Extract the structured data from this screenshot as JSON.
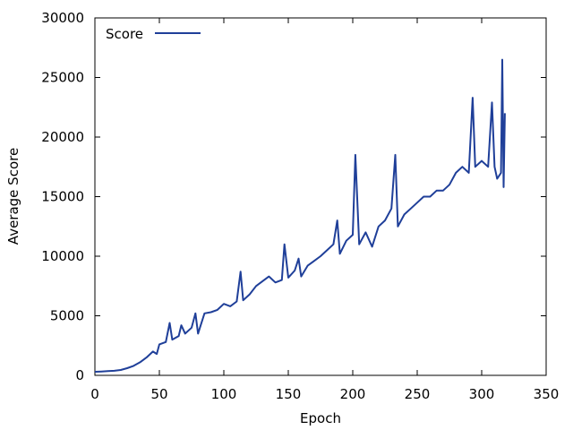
{
  "chart_data": {
    "type": "line",
    "title": "",
    "xlabel": "Epoch",
    "ylabel": "Average Score",
    "xlim": [
      0,
      350
    ],
    "ylim": [
      0,
      30000
    ],
    "xticks": [
      0,
      50,
      100,
      150,
      200,
      250,
      300,
      350
    ],
    "yticks": [
      0,
      5000,
      10000,
      15000,
      20000,
      25000,
      30000
    ],
    "grid": false,
    "legend_position": "top-left",
    "series": [
      {
        "name": "Score",
        "color": "#1f3f99",
        "x": [
          0,
          5,
          10,
          15,
          20,
          25,
          30,
          35,
          40,
          45,
          48,
          50,
          55,
          58,
          60,
          65,
          67,
          70,
          75,
          78,
          80,
          85,
          90,
          95,
          100,
          105,
          110,
          113,
          115,
          120,
          125,
          130,
          135,
          140,
          145,
          147,
          150,
          155,
          158,
          160,
          165,
          170,
          175,
          180,
          185,
          188,
          190,
          195,
          200,
          202,
          205,
          210,
          215,
          220,
          225,
          230,
          233,
          235,
          240,
          245,
          250,
          255,
          260,
          265,
          270,
          275,
          280,
          285,
          290,
          293,
          295,
          300,
          305,
          308,
          310,
          312,
          315,
          316,
          317,
          318
        ],
        "y": [
          300,
          320,
          350,
          380,
          450,
          600,
          800,
          1100,
          1500,
          2000,
          1800,
          2600,
          2800,
          4400,
          3000,
          3300,
          4200,
          3500,
          4000,
          5200,
          3500,
          5200,
          5300,
          5500,
          6000,
          5800,
          6200,
          8700,
          6300,
          6800,
          7500,
          7900,
          8300,
          7800,
          8000,
          11000,
          8200,
          8800,
          9800,
          8300,
          9200,
          9600,
          10000,
          10500,
          11000,
          13000,
          10200,
          11300,
          11800,
          18500,
          11000,
          12000,
          10800,
          12500,
          13000,
          14000,
          18500,
          12500,
          13500,
          14000,
          14500,
          15000,
          15000,
          15500,
          15500,
          16000,
          17000,
          17500,
          17000,
          23300,
          17500,
          18000,
          17500,
          22900,
          17500,
          16500,
          17000,
          26500,
          15800,
          22000
        ]
      }
    ]
  }
}
